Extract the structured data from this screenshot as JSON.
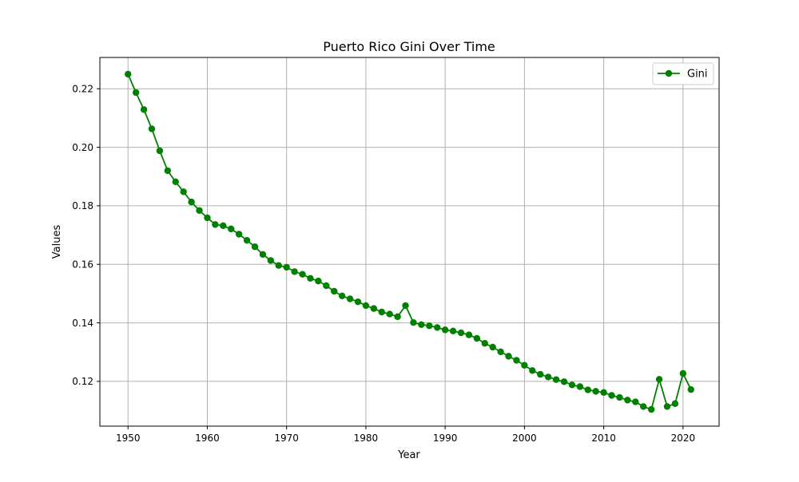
{
  "chart_data": {
    "type": "line",
    "title": "Puerto Rico Gini Over Time",
    "xlabel": "Year",
    "ylabel": "Values",
    "xlim": [
      1946.45,
      2024.55
    ],
    "ylim": [
      0.1047,
      0.2307
    ],
    "x_ticks": [
      1950,
      1960,
      1970,
      1980,
      1990,
      2000,
      2010,
      2020
    ],
    "y_ticks": [
      0.12,
      0.14,
      0.16,
      0.18,
      0.2,
      0.22
    ],
    "y_tick_labels": [
      "0.12",
      "0.14",
      "0.16",
      "0.18",
      "0.20",
      "0.22"
    ],
    "grid": true,
    "legend_position": "top-right",
    "series": [
      {
        "name": "Gini",
        "color": "#008000",
        "marker": "circle",
        "x": [
          1950,
          1951,
          1952,
          1953,
          1954,
          1955,
          1956,
          1957,
          1958,
          1959,
          1960,
          1961,
          1962,
          1963,
          1964,
          1965,
          1966,
          1967,
          1968,
          1969,
          1970,
          1971,
          1972,
          1973,
          1974,
          1975,
          1976,
          1977,
          1978,
          1979,
          1980,
          1981,
          1982,
          1983,
          1984,
          1985,
          1986,
          1987,
          1988,
          1989,
          1990,
          1991,
          1992,
          1993,
          1994,
          1995,
          1996,
          1997,
          1998,
          1999,
          2000,
          2001,
          2002,
          2003,
          2004,
          2005,
          2006,
          2007,
          2008,
          2009,
          2010,
          2011,
          2012,
          2013,
          2014,
          2015,
          2016,
          2017,
          2018,
          2019,
          2020,
          2021
        ],
        "y": [
          0.225,
          0.2187,
          0.2129,
          0.2063,
          0.1988,
          0.192,
          0.1882,
          0.1848,
          0.1813,
          0.1784,
          0.1759,
          0.1736,
          0.1732,
          0.1721,
          0.1703,
          0.1682,
          0.166,
          0.1634,
          0.1613,
          0.1596,
          0.159,
          0.1575,
          0.1566,
          0.1552,
          0.1543,
          0.1527,
          0.1508,
          0.1492,
          0.1482,
          0.1472,
          0.1459,
          0.1449,
          0.1437,
          0.143,
          0.1421,
          0.1459,
          0.1401,
          0.1394,
          0.139,
          0.1384,
          0.1376,
          0.1372,
          0.1366,
          0.1359,
          0.1347,
          0.133,
          0.1317,
          0.1301,
          0.1286,
          0.1272,
          0.1255,
          0.1237,
          0.1224,
          0.1215,
          0.1206,
          0.1199,
          0.1188,
          0.1182,
          0.1171,
          0.1166,
          0.1162,
          0.1152,
          0.1145,
          0.1136,
          0.113,
          0.1114,
          0.1104,
          0.1207,
          0.1114,
          0.1124,
          0.1227,
          0.1172
        ]
      }
    ]
  }
}
